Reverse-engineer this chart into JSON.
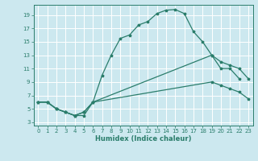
{
  "xlabel": "Humidex (Indice chaleur)",
  "bg_color": "#cce8ef",
  "line_color": "#2a7d6b",
  "grid_color": "#ffffff",
  "xlim": [
    -0.5,
    23.5
  ],
  "ylim": [
    2.5,
    20.5
  ],
  "xticks": [
    0,
    1,
    2,
    3,
    4,
    5,
    6,
    7,
    8,
    9,
    10,
    11,
    12,
    13,
    14,
    15,
    16,
    17,
    18,
    19,
    20,
    21,
    22,
    23
  ],
  "yticks": [
    3,
    5,
    7,
    9,
    11,
    13,
    15,
    17,
    19
  ],
  "line1_x": [
    0,
    1,
    2,
    3,
    4,
    5,
    6,
    7,
    8,
    9,
    10,
    11,
    12,
    13,
    14,
    15,
    16,
    17,
    18,
    19,
    20,
    21,
    22
  ],
  "line1_y": [
    6,
    6,
    5,
    4.5,
    4,
    4,
    6,
    10,
    13,
    15.5,
    16,
    17.5,
    18,
    19.2,
    19.7,
    19.8,
    19.2,
    16.5,
    15,
    13,
    11,
    11,
    9.5
  ],
  "line2_x": [
    0,
    1,
    2,
    3,
    4,
    5,
    6,
    19,
    20,
    21,
    22,
    23
  ],
  "line2_y": [
    6,
    6,
    5,
    4.5,
    4,
    4.5,
    6,
    13,
    12,
    11.5,
    11,
    9.5
  ],
  "line3_x": [
    0,
    1,
    2,
    3,
    4,
    5,
    6,
    19,
    20,
    21,
    22,
    23
  ],
  "line3_y": [
    6,
    6,
    5,
    4.5,
    4,
    4.5,
    6,
    9,
    8.5,
    8,
    7.5,
    6.5
  ]
}
